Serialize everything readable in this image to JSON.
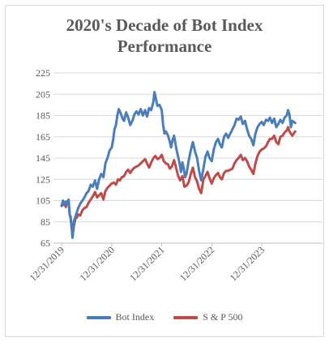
{
  "chart_data": {
    "type": "line",
    "title": "2020's Decade of Bot Index Performance",
    "title_lines": [
      "2020's Decade of Bot Index",
      "Performance"
    ],
    "x_tick_labels": [
      "12/31/2019",
      "12/31/2020",
      "12/31/2021",
      "12/31/2022",
      "12/31/2023"
    ],
    "x_range": [
      "2019-12-31",
      "2024-08-31"
    ],
    "ylim": [
      65,
      225
    ],
    "y_ticks": [
      65,
      85,
      105,
      125,
      145,
      165,
      185,
      205,
      225
    ],
    "grid": "horizontal",
    "legend_position": "bottom",
    "series": [
      {
        "name": "Bot Index",
        "color": "#4a7ebb",
        "points": [
          [
            "2019-12-31",
            100
          ],
          [
            "2020-01-10",
            105
          ],
          [
            "2020-01-20",
            101
          ],
          [
            "2020-01-31",
            104
          ],
          [
            "2020-02-10",
            102
          ],
          [
            "2020-02-20",
            106
          ],
          [
            "2020-02-28",
            92
          ],
          [
            "2020-03-06",
            88
          ],
          [
            "2020-03-13",
            80
          ],
          [
            "2020-03-20",
            70
          ],
          [
            "2020-03-31",
            86
          ],
          [
            "2020-04-10",
            90
          ],
          [
            "2020-04-20",
            94
          ],
          [
            "2020-04-30",
            98
          ],
          [
            "2020-05-15",
            102
          ],
          [
            "2020-05-31",
            105
          ],
          [
            "2020-06-15",
            108
          ],
          [
            "2020-06-30",
            112
          ],
          [
            "2020-07-15",
            114
          ],
          [
            "2020-07-31",
            120
          ],
          [
            "2020-08-15",
            118
          ],
          [
            "2020-08-31",
            124
          ],
          [
            "2020-09-15",
            116
          ],
          [
            "2020-09-30",
            125
          ],
          [
            "2020-10-15",
            130
          ],
          [
            "2020-10-31",
            127
          ],
          [
            "2020-11-15",
            140
          ],
          [
            "2020-11-30",
            145
          ],
          [
            "2020-12-15",
            152
          ],
          [
            "2020-12-31",
            155
          ],
          [
            "2021-01-10",
            162
          ],
          [
            "2021-01-20",
            172
          ],
          [
            "2021-01-31",
            176
          ],
          [
            "2021-02-10",
            185
          ],
          [
            "2021-02-20",
            191
          ],
          [
            "2021-02-28",
            189
          ],
          [
            "2021-03-10",
            186
          ],
          [
            "2021-03-20",
            182
          ],
          [
            "2021-03-31",
            180
          ],
          [
            "2021-04-15",
            188
          ],
          [
            "2021-04-30",
            183
          ],
          [
            "2021-05-15",
            176
          ],
          [
            "2021-05-31",
            180
          ],
          [
            "2021-06-15",
            186
          ],
          [
            "2021-06-30",
            189
          ],
          [
            "2021-07-15",
            186
          ],
          [
            "2021-07-31",
            191
          ],
          [
            "2021-08-15",
            185
          ],
          [
            "2021-08-31",
            190
          ],
          [
            "2021-09-15",
            184
          ],
          [
            "2021-09-30",
            192
          ],
          [
            "2021-10-15",
            190
          ],
          [
            "2021-10-31",
            198
          ],
          [
            "2021-11-08",
            207
          ],
          [
            "2021-11-15",
            203
          ],
          [
            "2021-11-30",
            194
          ],
          [
            "2021-12-15",
            195
          ],
          [
            "2021-12-31",
            190
          ],
          [
            "2022-01-10",
            176
          ],
          [
            "2022-01-20",
            168
          ],
          [
            "2022-01-31",
            170
          ],
          [
            "2022-02-15",
            166
          ],
          [
            "2022-02-28",
            160
          ],
          [
            "2022-03-10",
            155
          ],
          [
            "2022-03-20",
            162
          ],
          [
            "2022-03-31",
            166
          ],
          [
            "2022-04-15",
            155
          ],
          [
            "2022-04-30",
            146
          ],
          [
            "2022-05-10",
            140
          ],
          [
            "2022-05-20",
            132
          ],
          [
            "2022-05-31",
            141
          ],
          [
            "2022-06-10",
            135
          ],
          [
            "2022-06-20",
            127
          ],
          [
            "2022-06-30",
            130
          ],
          [
            "2022-07-15",
            142
          ],
          [
            "2022-07-31",
            152
          ],
          [
            "2022-08-15",
            160
          ],
          [
            "2022-08-31",
            151
          ],
          [
            "2022-09-15",
            145
          ],
          [
            "2022-09-30",
            133
          ],
          [
            "2022-10-15",
            124
          ],
          [
            "2022-10-31",
            135
          ],
          [
            "2022-11-15",
            146
          ],
          [
            "2022-11-30",
            151
          ],
          [
            "2022-12-15",
            145
          ],
          [
            "2022-12-31",
            142
          ],
          [
            "2023-01-15",
            153
          ],
          [
            "2023-01-31",
            160
          ],
          [
            "2023-02-15",
            163
          ],
          [
            "2023-02-28",
            158
          ],
          [
            "2023-03-15",
            155
          ],
          [
            "2023-03-31",
            165
          ],
          [
            "2023-04-15",
            168
          ],
          [
            "2023-04-30",
            164
          ],
          [
            "2023-05-15",
            168
          ],
          [
            "2023-05-31",
            172
          ],
          [
            "2023-06-15",
            176
          ],
          [
            "2023-06-30",
            182
          ],
          [
            "2023-07-15",
            181
          ],
          [
            "2023-07-31",
            184
          ],
          [
            "2023-08-15",
            177
          ],
          [
            "2023-08-31",
            180
          ],
          [
            "2023-09-15",
            172
          ],
          [
            "2023-09-30",
            166
          ],
          [
            "2023-10-15",
            163
          ],
          [
            "2023-10-31",
            157
          ],
          [
            "2023-11-15",
            168
          ],
          [
            "2023-11-30",
            174
          ],
          [
            "2023-12-15",
            177
          ],
          [
            "2023-12-31",
            179
          ],
          [
            "2024-01-15",
            176
          ],
          [
            "2024-01-31",
            181
          ],
          [
            "2024-02-15",
            180
          ],
          [
            "2024-02-29",
            183
          ],
          [
            "2024-03-15",
            178
          ],
          [
            "2024-03-31",
            182
          ],
          [
            "2024-04-15",
            174
          ],
          [
            "2024-04-30",
            177
          ],
          [
            "2024-05-15",
            181
          ],
          [
            "2024-05-31",
            178
          ],
          [
            "2024-06-15",
            183
          ],
          [
            "2024-06-30",
            185
          ],
          [
            "2024-07-10",
            190
          ],
          [
            "2024-07-20",
            186
          ],
          [
            "2024-07-31",
            174
          ],
          [
            "2024-08-10",
            180
          ],
          [
            "2024-08-31",
            178
          ]
        ]
      },
      {
        "name": "S & P 500",
        "color": "#be4b48",
        "points": [
          [
            "2019-12-31",
            100
          ],
          [
            "2020-01-10",
            101
          ],
          [
            "2020-01-20",
            103
          ],
          [
            "2020-01-31",
            99
          ],
          [
            "2020-02-10",
            104
          ],
          [
            "2020-02-20",
            105
          ],
          [
            "2020-02-28",
            92
          ],
          [
            "2020-03-06",
            90
          ],
          [
            "2020-03-13",
            82
          ],
          [
            "2020-03-20",
            72
          ],
          [
            "2020-03-31",
            82
          ],
          [
            "2020-04-10",
            88
          ],
          [
            "2020-04-20",
            89
          ],
          [
            "2020-04-30",
            92
          ],
          [
            "2020-05-15",
            91
          ],
          [
            "2020-05-31",
            96
          ],
          [
            "2020-06-15",
            98
          ],
          [
            "2020-06-30",
            99
          ],
          [
            "2020-07-15",
            103
          ],
          [
            "2020-07-31",
            106
          ],
          [
            "2020-08-15",
            109
          ],
          [
            "2020-08-31",
            113
          ],
          [
            "2020-09-15",
            108
          ],
          [
            "2020-09-30",
            110
          ],
          [
            "2020-10-15",
            112
          ],
          [
            "2020-10-31",
            106
          ],
          [
            "2020-11-15",
            114
          ],
          [
            "2020-11-30",
            117
          ],
          [
            "2020-12-15",
            119
          ],
          [
            "2020-12-31",
            121
          ],
          [
            "2021-01-15",
            122
          ],
          [
            "2021-01-31",
            120
          ],
          [
            "2021-02-15",
            125
          ],
          [
            "2021-02-28",
            124
          ],
          [
            "2021-03-15",
            127
          ],
          [
            "2021-03-31",
            128
          ],
          [
            "2021-04-15",
            132
          ],
          [
            "2021-04-30",
            134
          ],
          [
            "2021-05-15",
            131
          ],
          [
            "2021-05-31",
            134
          ],
          [
            "2021-06-15",
            136
          ],
          [
            "2021-06-30",
            137
          ],
          [
            "2021-07-15",
            138
          ],
          [
            "2021-07-31",
            140
          ],
          [
            "2021-08-15",
            142
          ],
          [
            "2021-08-31",
            144
          ],
          [
            "2021-09-15",
            140
          ],
          [
            "2021-09-30",
            136
          ],
          [
            "2021-10-15",
            141
          ],
          [
            "2021-10-31",
            145
          ],
          [
            "2021-11-15",
            147
          ],
          [
            "2021-11-30",
            144
          ],
          [
            "2021-12-15",
            145
          ],
          [
            "2021-12-31",
            148
          ],
          [
            "2022-01-15",
            142
          ],
          [
            "2022-01-31",
            140
          ],
          [
            "2022-02-15",
            139
          ],
          [
            "2022-02-28",
            135
          ],
          [
            "2022-03-15",
            137
          ],
          [
            "2022-03-31",
            143
          ],
          [
            "2022-04-15",
            136
          ],
          [
            "2022-04-30",
            128
          ],
          [
            "2022-05-15",
            124
          ],
          [
            "2022-05-31",
            128
          ],
          [
            "2022-06-15",
            118
          ],
          [
            "2022-06-30",
            119
          ],
          [
            "2022-07-15",
            122
          ],
          [
            "2022-07-31",
            130
          ],
          [
            "2022-08-15",
            136
          ],
          [
            "2022-08-31",
            127
          ],
          [
            "2022-09-15",
            123
          ],
          [
            "2022-09-30",
            116
          ],
          [
            "2022-10-15",
            112
          ],
          [
            "2022-10-31",
            125
          ],
          [
            "2022-11-15",
            128
          ],
          [
            "2022-11-30",
            132
          ],
          [
            "2022-12-15",
            126
          ],
          [
            "2022-12-31",
            121
          ],
          [
            "2023-01-15",
            126
          ],
          [
            "2023-01-31",
            129
          ],
          [
            "2023-02-15",
            131
          ],
          [
            "2023-02-28",
            127
          ],
          [
            "2023-03-15",
            125
          ],
          [
            "2023-03-31",
            131
          ],
          [
            "2023-04-15",
            133
          ],
          [
            "2023-04-30",
            133
          ],
          [
            "2023-05-15",
            134
          ],
          [
            "2023-05-31",
            135
          ],
          [
            "2023-06-15",
            140
          ],
          [
            "2023-06-30",
            143
          ],
          [
            "2023-07-15",
            145
          ],
          [
            "2023-07-31",
            148
          ],
          [
            "2023-08-15",
            143
          ],
          [
            "2023-08-31",
            145
          ],
          [
            "2023-09-15",
            142
          ],
          [
            "2023-09-30",
            137
          ],
          [
            "2023-10-15",
            134
          ],
          [
            "2023-10-31",
            130
          ],
          [
            "2023-11-15",
            140
          ],
          [
            "2023-11-30",
            147
          ],
          [
            "2023-12-15",
            151
          ],
          [
            "2023-12-31",
            153
          ],
          [
            "2024-01-15",
            154
          ],
          [
            "2024-01-31",
            156
          ],
          [
            "2024-02-15",
            160
          ],
          [
            "2024-02-29",
            163
          ],
          [
            "2024-03-15",
            163
          ],
          [
            "2024-03-31",
            166
          ],
          [
            "2024-04-15",
            160
          ],
          [
            "2024-04-30",
            158
          ],
          [
            "2024-05-15",
            165
          ],
          [
            "2024-05-31",
            166
          ],
          [
            "2024-06-15",
            169
          ],
          [
            "2024-06-30",
            171
          ],
          [
            "2024-07-10",
            174
          ],
          [
            "2024-07-20",
            170
          ],
          [
            "2024-07-31",
            168
          ],
          [
            "2024-08-10",
            166
          ],
          [
            "2024-08-31",
            170
          ]
        ]
      }
    ]
  }
}
